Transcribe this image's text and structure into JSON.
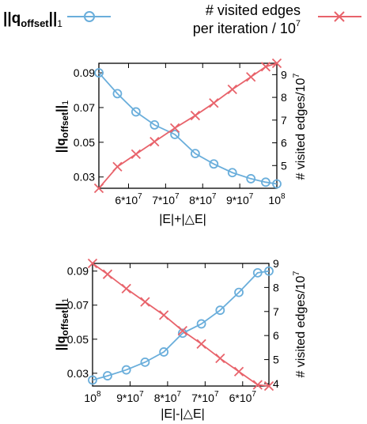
{
  "legend": {
    "items": [
      {
        "label_main": "||q",
        "label_sub": "offset",
        "label_tail": "||",
        "label_sub2": "1",
        "color": "#6aaedb",
        "marker": "circle"
      },
      {
        "label_line1": "# visited edges",
        "label_line2": "per iteration / 10",
        "label_sup": "7",
        "color": "#e8636b",
        "marker": "x"
      }
    ]
  },
  "chart_data": [
    {
      "type": "line",
      "xlabel": "|E|+|△E|",
      "ylabel_left": {
        "main": "||q",
        "sub": "offset",
        "tail": "||",
        "sub2": "1"
      },
      "ylabel_right": {
        "main": "# visited edges/10",
        "sup": "7"
      },
      "x_ticks": [
        {
          "value": 60000000,
          "label": "6*10",
          "sup": "7"
        },
        {
          "value": 70000000,
          "label": "7*10",
          "sup": "7"
        },
        {
          "value": 80000000,
          "label": "8*10",
          "sup": "7"
        },
        {
          "value": 90000000,
          "label": "9*10",
          "sup": "7"
        },
        {
          "value": 100000000,
          "label": "10",
          "sup": "8"
        }
      ],
      "xlim": [
        52000000,
        100000000
      ],
      "ylim_left": [
        0.0235,
        0.0955
      ],
      "ylim_right": [
        4.0,
        9.5
      ],
      "y_left_ticks": [
        "0.03",
        "0.05",
        "0.07",
        "0.09"
      ],
      "y_right_ticks": [
        "5",
        "6",
        "7",
        "8",
        "9"
      ],
      "series": [
        {
          "name": "||q_offset||_1",
          "axis": "left",
          "color": "#6aaedb",
          "marker": "circle",
          "x": [
            52000000,
            57000000,
            62000000,
            67000000,
            72500000,
            78000000,
            83000000,
            88000000,
            93000000,
            97000000,
            100000000
          ],
          "y": [
            0.09,
            0.078,
            0.0675,
            0.06,
            0.0545,
            0.0435,
            0.0375,
            0.0325,
            0.029,
            0.027,
            0.026
          ]
        },
        {
          "name": "# visited edges per iteration / 10^7",
          "axis": "right",
          "color": "#e8636b",
          "marker": "x",
          "x": [
            52000000,
            57000000,
            62000000,
            67000000,
            72500000,
            78000000,
            83000000,
            88000000,
            93000000,
            97000000,
            100000000
          ],
          "y": [
            4.0,
            4.95,
            5.5,
            6.05,
            6.65,
            7.2,
            7.75,
            8.35,
            8.9,
            9.35,
            9.5
          ]
        }
      ]
    },
    {
      "type": "line",
      "xlabel": "|E|-|△E|",
      "ylabel_left": {
        "main": "||q",
        "sub": "offset",
        "tail": "||",
        "sub2": "1"
      },
      "ylabel_right": {
        "main": "# visited edges/10",
        "sup": "7"
      },
      "x_ticks": [
        {
          "value": 100000000,
          "label": "10",
          "sup": "8"
        },
        {
          "value": 90000000,
          "label": "9*10",
          "sup": "7"
        },
        {
          "value": 80000000,
          "label": "8*10",
          "sup": "7"
        },
        {
          "value": 70000000,
          "label": "7*10",
          "sup": "7"
        },
        {
          "value": 60000000,
          "label": "6*10",
          "sup": "7"
        }
      ],
      "xlim": [
        100000000,
        53000000
      ],
      "x_reversed": true,
      "ylim_left": [
        0.0225,
        0.0945
      ],
      "ylim_right": [
        3.9,
        9.0
      ],
      "y_left_ticks": [
        "0.03",
        "0.05",
        "0.07",
        "0.09"
      ],
      "y_right_ticks": [
        "4",
        "5",
        "6",
        "7",
        "8",
        "9"
      ],
      "series": [
        {
          "name": "||q_offset||_1",
          "axis": "left",
          "color": "#6aaedb",
          "marker": "circle",
          "x": [
            100000000,
            96000000,
            91000000,
            86000000,
            81000000,
            76000000,
            71000000,
            66000000,
            61000000,
            56000000,
            53000000
          ],
          "y": [
            0.026,
            0.0285,
            0.032,
            0.0365,
            0.0425,
            0.0535,
            0.059,
            0.067,
            0.0775,
            0.089,
            0.09
          ]
        },
        {
          "name": "# visited edges per iteration / 10^7",
          "axis": "right",
          "color": "#e8636b",
          "marker": "x",
          "x": [
            100000000,
            96000000,
            91000000,
            86000000,
            81000000,
            76000000,
            71000000,
            66000000,
            61000000,
            56000000,
            53000000
          ],
          "y": [
            9.0,
            8.55,
            7.95,
            7.4,
            6.85,
            6.2,
            5.65,
            5.05,
            4.5,
            3.95,
            3.9
          ]
        }
      ]
    }
  ]
}
